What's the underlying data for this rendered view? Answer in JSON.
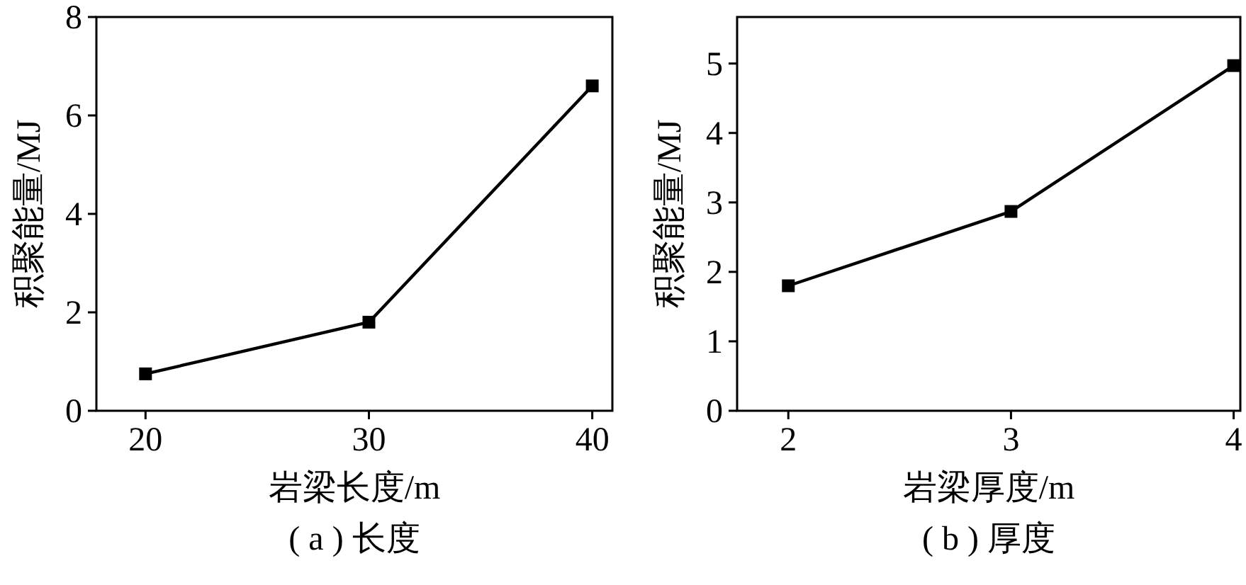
{
  "chart_data": [
    {
      "type": "line",
      "xlabel": "岩梁长度/m",
      "ylabel": "积聚能量/MJ",
      "annotations": [
        "( a ) 长度"
      ],
      "x": [
        20,
        30,
        40
      ],
      "series": [
        {
          "color": "#000000",
          "values": [
            0.75,
            1.8,
            6.6
          ]
        }
      ],
      "xlim": [
        17.8,
        40.9
      ],
      "ylim": [
        0,
        8
      ],
      "xticks": [
        20,
        30,
        40
      ],
      "yticks": [
        0,
        2,
        4,
        6,
        8
      ],
      "marker": "square",
      "line_style": "solid",
      "grid": false
    },
    {
      "type": "line",
      "xlabel": "岩梁厚度/m",
      "ylabel": "积聚能量/MJ",
      "annotations": [
        "( b ) 厚度"
      ],
      "x": [
        2,
        3,
        4
      ],
      "series": [
        {
          "color": "#000000",
          "values": [
            1.8,
            2.87,
            4.97
          ]
        }
      ],
      "xlim": [
        1.77,
        4.03
      ],
      "ylim": [
        0,
        5.67
      ],
      "xticks": [
        2,
        3,
        4
      ],
      "yticks": [
        0,
        1,
        2,
        3,
        4,
        5
      ],
      "marker": "square",
      "line_style": "solid",
      "grid": false
    }
  ]
}
